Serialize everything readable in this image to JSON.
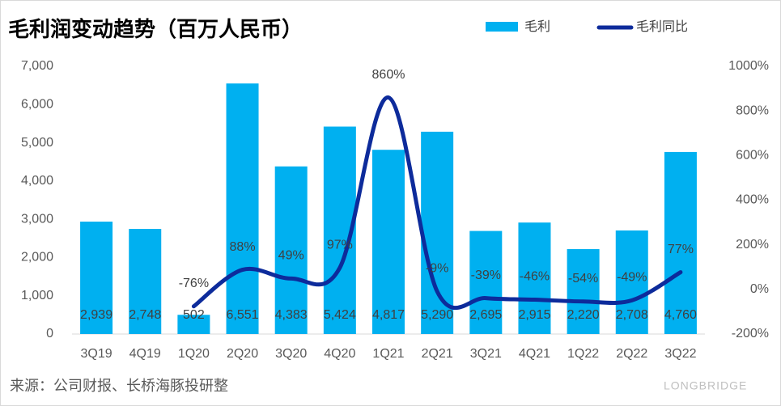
{
  "chart_data": {
    "type": "bar",
    "title": "毛利润变动趋势（百万人民币）",
    "categories": [
      "3Q19",
      "4Q19",
      "1Q20",
      "2Q20",
      "3Q20",
      "4Q20",
      "1Q21",
      "2Q21",
      "3Q21",
      "4Q21",
      "1Q22",
      "2Q22",
      "3Q22"
    ],
    "series": [
      {
        "name": "毛利",
        "type": "bar",
        "color": "#00b0f0",
        "values": [
          2939,
          2748,
          502,
          6551,
          4383,
          5424,
          4817,
          5290,
          2695,
          2915,
          2220,
          2708,
          4760
        ],
        "value_labels": [
          "2,939",
          "2,748",
          "502",
          "6,551",
          "4,383",
          "5,424",
          "4,817",
          "5,290",
          "2,695",
          "2,915",
          "2,220",
          "2,708",
          "4,760"
        ]
      },
      {
        "name": "毛利同比",
        "type": "line",
        "axis": "y2",
        "color": "#0d2b9b",
        "values": [
          null,
          null,
          -76,
          88,
          49,
          97,
          860,
          -9,
          -39,
          -46,
          -54,
          -49,
          77
        ],
        "value_labels": [
          null,
          null,
          "-76%",
          "88%",
          "49%",
          "97%",
          "860%",
          "-9%",
          "-39%",
          "-46%",
          "-54%",
          "-49%",
          "77%"
        ]
      }
    ],
    "ylim": [
      0,
      7000
    ],
    "yticks": [
      0,
      {
        "value": 1000,
        "label": "1,000"
      },
      {
        "value": 2000,
        "label": "2,000"
      },
      {
        "value": 3000,
        "label": "3,000"
      },
      {
        "value": 4000,
        "label": "4,000"
      },
      {
        "value": 5000,
        "label": "5,000"
      },
      {
        "value": 6000,
        "label": "6,000"
      },
      {
        "value": 7000,
        "label": "7,000"
      }
    ],
    "y2lim": [
      -200,
      1000
    ],
    "y2ticks": [
      {
        "value": -200,
        "label": "-200%"
      },
      {
        "value": 0,
        "label": "0%"
      },
      {
        "value": 200,
        "label": "200%"
      },
      {
        "value": 400,
        "label": "400%"
      },
      {
        "value": 600,
        "label": "600%"
      },
      {
        "value": 800,
        "label": "800%"
      },
      {
        "value": 1000,
        "label": "1000%"
      }
    ],
    "legend": "top-right",
    "source": "来源：公司财报、长桥海豚投研整",
    "brand": "LONGBRIDGE"
  }
}
